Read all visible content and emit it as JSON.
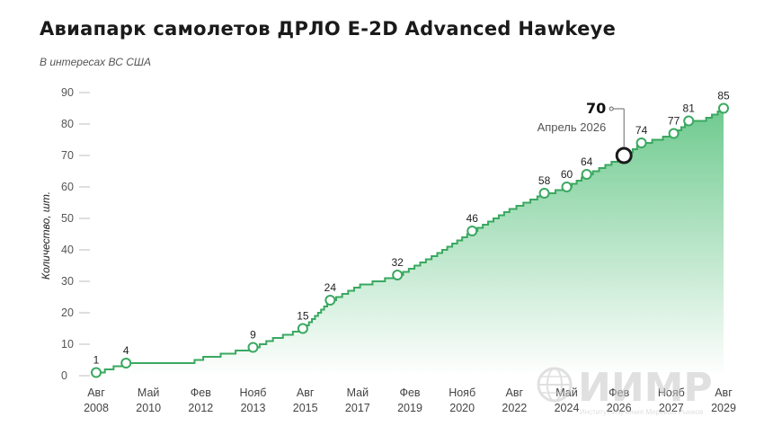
{
  "title": "Авиапарк самолетов ДРЛО E-2D Advanced Hawkeye",
  "subtitle": "В интересах ВС США",
  "watermark": {
    "text": "ИИМР",
    "subtext": "Институт Изучения Мировых Рынков",
    "color": "#d0d0d0"
  },
  "colors": {
    "fill_top": "#6fca8f",
    "fill_bottom": "#ffffff",
    "line": "#3aa860",
    "marker_stroke": "#3aa860",
    "highlight_stroke": "#1a1a1a"
  },
  "chart_data": {
    "type": "area",
    "title": "Авиапарк самолетов ДРЛО E-2D Advanced Hawkeye",
    "subtitle": "В интересах ВС США",
    "xlabel": "",
    "ylabel": "Количество, шт.",
    "ylim": [
      0,
      90
    ],
    "yticks": [
      "0",
      "10",
      "20",
      "30",
      "40",
      "50",
      "60",
      "70",
      "80",
      "90"
    ],
    "xticks": [
      {
        "month": "Авг",
        "year": "2008"
      },
      {
        "month": "Май",
        "year": "2010"
      },
      {
        "month": "Фев",
        "year": "2012"
      },
      {
        "month": "Нояб",
        "year": "2013"
      },
      {
        "month": "Авг",
        "year": "2015"
      },
      {
        "month": "Май",
        "year": "2017"
      },
      {
        "month": "Фев",
        "year": "2019"
      },
      {
        "month": "Нояб",
        "year": "2020"
      },
      {
        "month": "Авг",
        "year": "2022"
      },
      {
        "month": "Май",
        "year": "2024"
      },
      {
        "month": "Фев",
        "year": "2026"
      },
      {
        "month": "Нояб",
        "year": "2027"
      },
      {
        "month": "Авг",
        "year": "2029"
      }
    ],
    "labeled_points": [
      {
        "date": "2008-08",
        "value": 1,
        "label": "1"
      },
      {
        "date": "2009-08",
        "value": 4,
        "label": "4"
      },
      {
        "date": "2013-11",
        "value": 9,
        "label": "9"
      },
      {
        "date": "2015-07",
        "value": 15,
        "label": "15"
      },
      {
        "date": "2016-06",
        "value": 24,
        "label": "24"
      },
      {
        "date": "2018-09",
        "value": 32,
        "label": "32"
      },
      {
        "date": "2021-03",
        "value": 46,
        "label": "46"
      },
      {
        "date": "2023-08",
        "value": 58,
        "label": "58"
      },
      {
        "date": "2024-05",
        "value": 60,
        "label": "60"
      },
      {
        "date": "2025-01",
        "value": 64,
        "label": "64"
      },
      {
        "date": "2026-04",
        "value": 70,
        "label": "70"
      },
      {
        "date": "2026-11",
        "value": 74,
        "label": "74"
      },
      {
        "date": "2027-12",
        "value": 77,
        "label": "77"
      },
      {
        "date": "2028-06",
        "value": 81,
        "label": "81"
      },
      {
        "date": "2029-08",
        "value": 85,
        "label": "85"
      }
    ],
    "series": [
      {
        "values": [
          {
            "date": "2008-08",
            "value": 1
          },
          {
            "date": "2009-03",
            "value": 3
          },
          {
            "date": "2009-08",
            "value": 4
          },
          {
            "date": "2011-08",
            "value": 4
          },
          {
            "date": "2012-03",
            "value": 6
          },
          {
            "date": "2012-10",
            "value": 7
          },
          {
            "date": "2013-04",
            "value": 8
          },
          {
            "date": "2013-11",
            "value": 9
          },
          {
            "date": "2014-07",
            "value": 12
          },
          {
            "date": "2015-07",
            "value": 15
          },
          {
            "date": "2016-06",
            "value": 24
          },
          {
            "date": "2017-06",
            "value": 29
          },
          {
            "date": "2018-09",
            "value": 32
          },
          {
            "date": "2020-01",
            "value": 39
          },
          {
            "date": "2021-03",
            "value": 46
          },
          {
            "date": "2022-06",
            "value": 53
          },
          {
            "date": "2023-08",
            "value": 58
          },
          {
            "date": "2024-05",
            "value": 60
          },
          {
            "date": "2025-01",
            "value": 64
          },
          {
            "date": "2026-04",
            "value": 70
          },
          {
            "date": "2026-11",
            "value": 74
          },
          {
            "date": "2027-12",
            "value": 77
          },
          {
            "date": "2028-06",
            "value": 81
          },
          {
            "date": "2029-01",
            "value": 82
          },
          {
            "date": "2029-08",
            "value": 85
          }
        ]
      }
    ],
    "highlight": {
      "date": "2026-04",
      "value": 70,
      "label": "70",
      "caption": "Апрель 2026"
    },
    "grid": false,
    "legend": "none"
  }
}
